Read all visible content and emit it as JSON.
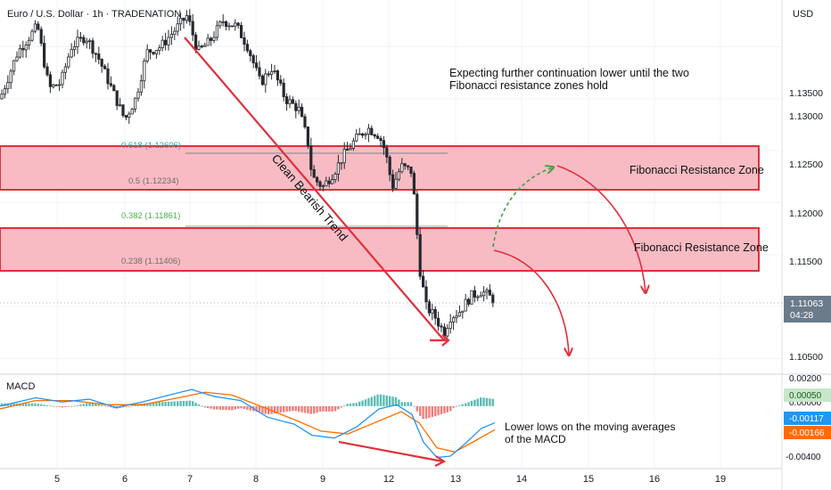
{
  "header": {
    "title": "Euro / U.S. Dollar · 1h · TRADENATION",
    "currency": "USD"
  },
  "price_axis": {
    "ticks": [
      "1.13500",
      "1.13000",
      "1.12500",
      "1.12000",
      "1.11500",
      "1.11000",
      "1.10500"
    ],
    "current_price": "1.11063",
    "countdown": "04:28"
  },
  "macd_axis": {
    "label": "MACD",
    "ticks": [
      "0.00200",
      "0.00000",
      "-0.00200",
      "-0.00400"
    ],
    "histogram_value": "0.00050",
    "macd_value": "-0.00117",
    "signal_value": "-0.00166"
  },
  "time_axis": {
    "ticks": [
      "5",
      "6",
      "7",
      "8",
      "9",
      "12",
      "13",
      "14",
      "15",
      "16",
      "19"
    ]
  },
  "fib_levels": [
    {
      "label": "0.618 (1.12606)",
      "color": "#26a69a"
    },
    {
      "label": "0.5 (1.12234)",
      "color": "#6e6e6e"
    },
    {
      "label": "0.382 (1.11861)",
      "color": "#4caf50"
    },
    {
      "label": "0.238 (1.11406)",
      "color": "#6e6e6e"
    }
  ],
  "annotations": {
    "main_line1": "Expecting further continuation lower until the two",
    "main_line2": "Fibonacci resistance zones hold",
    "zone_upper": "Fibonacci Resistance Zone",
    "zone_lower": "Fibonacci Resistance Zone",
    "trend": "Clean Bearish Trend",
    "macd_line1": "Lower lows on the moving averages",
    "macd_line2": "of the MACD"
  },
  "colors": {
    "zone_fill": "#f8bbc3",
    "zone_border": "#e0303c",
    "arrow_red": "#e0303c",
    "arrow_green": "#43a047",
    "candle": "#26282f",
    "macd_line": "#2196f3",
    "signal_line": "#ff6d00",
    "hist_pos": "#26a69a",
    "hist_neg": "#ef5350",
    "price_badge": "#6b7b8a",
    "macd_badge_bg": "#c8e6c9"
  },
  "chart_data": {
    "type": "candlestick",
    "symbol": "EURUSD",
    "interval": "1h",
    "ylim": [
      1.1035,
      1.1395
    ],
    "close_path": [
      {
        "x": 0,
        "y": 1.13
      },
      {
        "x": 20,
        "y": 1.1345
      },
      {
        "x": 42,
        "y": 1.137
      },
      {
        "x": 55,
        "y": 1.131
      },
      {
        "x": 68,
        "y": 1.1315
      },
      {
        "x": 80,
        "y": 1.135
      },
      {
        "x": 96,
        "y": 1.136
      },
      {
        "x": 110,
        "y": 1.134
      },
      {
        "x": 125,
        "y": 1.131
      },
      {
        "x": 140,
        "y": 1.128
      },
      {
        "x": 152,
        "y": 1.13
      },
      {
        "x": 165,
        "y": 1.1345
      },
      {
        "x": 180,
        "y": 1.135
      },
      {
        "x": 195,
        "y": 1.1365
      },
      {
        "x": 210,
        "y": 1.138
      },
      {
        "x": 222,
        "y": 1.1345
      },
      {
        "x": 235,
        "y": 1.1355
      },
      {
        "x": 250,
        "y": 1.1375
      },
      {
        "x": 265,
        "y": 1.137
      },
      {
        "x": 278,
        "y": 1.135
      },
      {
        "x": 292,
        "y": 1.1315
      },
      {
        "x": 305,
        "y": 1.133
      },
      {
        "x": 320,
        "y": 1.13
      },
      {
        "x": 335,
        "y": 1.129
      },
      {
        "x": 345,
        "y": 1.126
      },
      {
        "x": 350,
        "y": 1.1225
      },
      {
        "x": 362,
        "y": 1.1215
      },
      {
        "x": 375,
        "y": 1.123
      },
      {
        "x": 385,
        "y": 1.1245
      },
      {
        "x": 398,
        "y": 1.126
      },
      {
        "x": 412,
        "y": 1.1272
      },
      {
        "x": 425,
        "y": 1.1265
      },
      {
        "x": 432,
        "y": 1.125
      },
      {
        "x": 440,
        "y": 1.1215
      },
      {
        "x": 450,
        "y": 1.1235
      },
      {
        "x": 462,
        "y": 1.123
      },
      {
        "x": 467,
        "y": 1.118
      },
      {
        "x": 470,
        "y": 1.114
      },
      {
        "x": 478,
        "y": 1.11
      },
      {
        "x": 488,
        "y": 1.109
      },
      {
        "x": 498,
        "y": 1.1075
      },
      {
        "x": 505,
        "y": 1.109
      },
      {
        "x": 515,
        "y": 1.1095
      },
      {
        "x": 528,
        "y": 1.111
      },
      {
        "x": 540,
        "y": 1.1115
      },
      {
        "x": 555,
        "y": 1.1106
      }
    ],
    "macd": [
      {
        "x": 0,
        "y": 0.0
      },
      {
        "x": 40,
        "y": 0.0006
      },
      {
        "x": 70,
        "y": 0.0003
      },
      {
        "x": 100,
        "y": 0.0005
      },
      {
        "x": 130,
        "y": -0.0001
      },
      {
        "x": 160,
        "y": 0.0003
      },
      {
        "x": 190,
        "y": 0.0008
      },
      {
        "x": 215,
        "y": 0.0012
      },
      {
        "x": 240,
        "y": 0.0007
      },
      {
        "x": 270,
        "y": 0.0004
      },
      {
        "x": 300,
        "y": -0.0008
      },
      {
        "x": 330,
        "y": -0.0013
      },
      {
        "x": 350,
        "y": -0.0021
      },
      {
        "x": 375,
        "y": -0.0023
      },
      {
        "x": 400,
        "y": -0.0015
      },
      {
        "x": 425,
        "y": -0.0002
      },
      {
        "x": 445,
        "y": 0.0001
      },
      {
        "x": 462,
        "y": -0.0006
      },
      {
        "x": 475,
        "y": -0.0026
      },
      {
        "x": 490,
        "y": -0.0037
      },
      {
        "x": 505,
        "y": -0.0036
      },
      {
        "x": 520,
        "y": -0.0028
      },
      {
        "x": 540,
        "y": -0.0016
      },
      {
        "x": 555,
        "y": -0.0012
      }
    ],
    "signal": [
      {
        "x": 0,
        "y": -0.0002
      },
      {
        "x": 40,
        "y": 0.0004
      },
      {
        "x": 80,
        "y": 0.0004
      },
      {
        "x": 120,
        "y": 0.0001
      },
      {
        "x": 160,
        "y": 0.0001
      },
      {
        "x": 200,
        "y": 0.0006
      },
      {
        "x": 230,
        "y": 0.001
      },
      {
        "x": 260,
        "y": 0.0008
      },
      {
        "x": 300,
        "y": -0.0002
      },
      {
        "x": 335,
        "y": -0.0011
      },
      {
        "x": 360,
        "y": -0.0018
      },
      {
        "x": 390,
        "y": -0.002
      },
      {
        "x": 420,
        "y": -0.0012
      },
      {
        "x": 450,
        "y": -0.0004
      },
      {
        "x": 470,
        "y": -0.0012
      },
      {
        "x": 490,
        "y": -0.003
      },
      {
        "x": 510,
        "y": -0.0033
      },
      {
        "x": 530,
        "y": -0.0026
      },
      {
        "x": 555,
        "y": -0.0017
      }
    ],
    "macd_ylim": [
      -0.0045,
      0.0023
    ]
  }
}
